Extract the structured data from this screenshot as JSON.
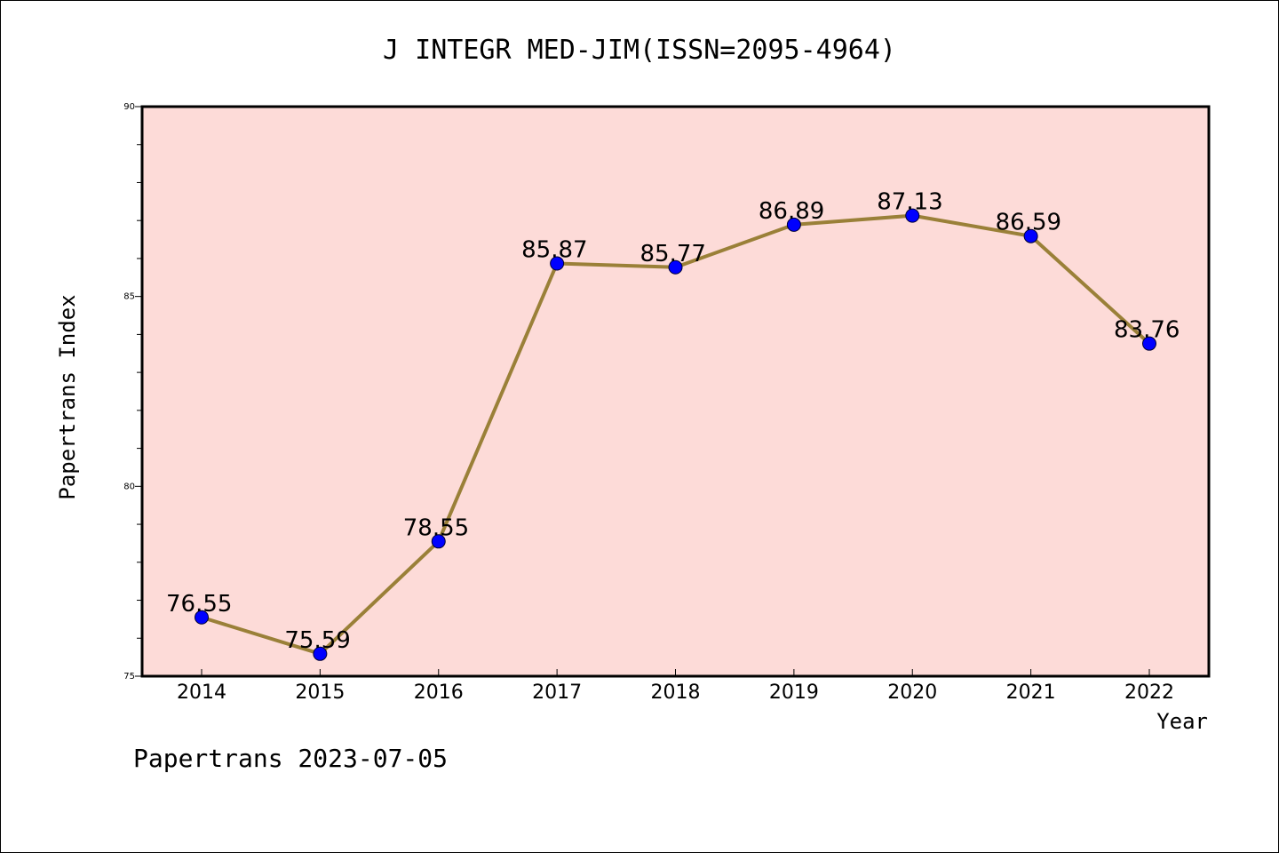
{
  "chart_data": {
    "type": "line",
    "title": "J INTEGR MED-JIM(ISSN=2095-4964)",
    "xlabel": "Year",
    "ylabel": "Papertrans Index",
    "categories": [
      "2014",
      "2015",
      "2016",
      "2017",
      "2018",
      "2019",
      "2020",
      "2021",
      "2022"
    ],
    "values": [
      76.55,
      75.59,
      78.55,
      85.87,
      85.77,
      86.89,
      87.13,
      86.59,
      83.76
    ],
    "data_labels": [
      "76.55",
      "75.59",
      "78.55",
      "85.87",
      "85.77",
      "86.89",
      "87.13",
      "86.59",
      "83.76"
    ],
    "ylim": [
      75,
      90
    ],
    "y_ticks": [
      75,
      80,
      85,
      90
    ],
    "y_tick_labels": [
      "75",
      "80",
      "85",
      "90"
    ],
    "y_minor_step": 1,
    "grid": false,
    "colors": {
      "plot_background": "#fddbd8",
      "line": "#9a8038",
      "marker": "#0000ff"
    }
  },
  "footer": "Papertrans 2023-07-05"
}
